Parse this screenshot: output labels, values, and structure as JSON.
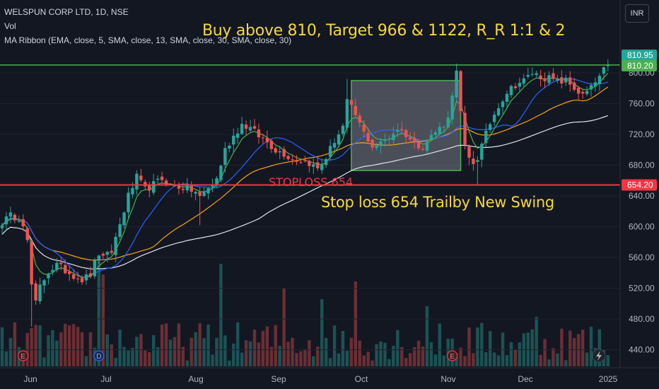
{
  "header": {
    "symbol_line": "WELSPUN CORP LTD, 1D, NSE",
    "volume_label": "Vol",
    "ma_ribbon_label": "MA Ribbon (EMA, close, 5, SMA, close, 13, SMA, close, 30, SMA, close, 30)"
  },
  "currency": "INR",
  "annotations": {
    "headline": "Buy above 810, Target 966 & 1122, R_R 1:1 & 2",
    "stoploss_label": "STOPLOSS 654",
    "stoploss_note": "Stop loss 654 Trailby New Swing"
  },
  "colors": {
    "background": "#131722",
    "up": "#26a69a",
    "down": "#ef5350",
    "buy_line": "#4caf50",
    "stop_line": "#f23645",
    "ema5": "#4caf50",
    "sma13": "#2962ff",
    "sma30": "#f7a21b",
    "sma30b": "#e0e3eb",
    "headline": "#f5d742"
  },
  "chart_data": {
    "type": "candlestick",
    "title": "WELSPUN CORP LTD, 1D, NSE",
    "y_axis": {
      "ticks": [
        440,
        480,
        520,
        560,
        600,
        640,
        680,
        720,
        760,
        800
      ],
      "range": [
        405,
        860
      ]
    },
    "x_axis": {
      "month_labels": [
        "Jun",
        "Jul",
        "Aug",
        "Sep",
        "Oct",
        "Nov",
        "Dec",
        "2025"
      ],
      "total_sessions": 145
    },
    "levels": [
      {
        "name": "buy",
        "value": 810.2,
        "label": "810.20"
      },
      {
        "name": "last",
        "value": 810.95,
        "label": "810.95"
      },
      {
        "name": "stoploss",
        "value": 654.2,
        "label": "654.20"
      }
    ],
    "zone": {
      "from_session": 83,
      "to_session": 109,
      "low": 673,
      "high": 790
    },
    "event_markers": [
      {
        "session": 5,
        "letter": "E"
      },
      {
        "session": 23,
        "letter": "D"
      },
      {
        "session": 107,
        "letter": "E"
      }
    ],
    "close_anchors": [
      [
        0,
        606
      ],
      [
        2,
        614
      ],
      [
        4,
        612
      ],
      [
        5,
        605
      ],
      [
        6,
        580
      ],
      [
        7,
        524
      ],
      [
        8,
        500
      ],
      [
        9,
        522
      ],
      [
        11,
        542
      ],
      [
        13,
        550
      ],
      [
        15,
        543
      ],
      [
        17,
        537
      ],
      [
        19,
        531
      ],
      [
        21,
        538
      ],
      [
        22,
        552
      ],
      [
        23,
        565
      ],
      [
        24,
        558
      ],
      [
        26,
        568
      ],
      [
        28,
        603
      ],
      [
        30,
        640
      ],
      [
        32,
        664
      ],
      [
        34,
        648
      ],
      [
        36,
        655
      ],
      [
        38,
        662
      ],
      [
        40,
        653
      ],
      [
        42,
        652
      ],
      [
        44,
        650
      ],
      [
        46,
        645
      ],
      [
        47,
        638
      ],
      [
        49,
        650
      ],
      [
        51,
        662
      ],
      [
        53,
        700
      ],
      [
        55,
        718
      ],
      [
        57,
        733
      ],
      [
        59,
        728
      ],
      [
        61,
        718
      ],
      [
        63,
        710
      ],
      [
        65,
        700
      ],
      [
        67,
        695
      ],
      [
        69,
        688
      ],
      [
        71,
        686
      ],
      [
        73,
        683
      ],
      [
        75,
        675
      ],
      [
        77,
        690
      ],
      [
        79,
        712
      ],
      [
        81,
        730
      ],
      [
        82,
        762
      ],
      [
        84,
        745
      ],
      [
        86,
        722
      ],
      [
        88,
        705
      ],
      [
        90,
        708
      ],
      [
        92,
        716
      ],
      [
        94,
        728
      ],
      [
        96,
        720
      ],
      [
        98,
        708
      ],
      [
        100,
        705
      ],
      [
        102,
        718
      ],
      [
        104,
        728
      ],
      [
        106,
        740
      ],
      [
        107,
        775
      ],
      [
        108,
        800
      ],
      [
        109,
        748
      ],
      [
        110,
        702
      ],
      [
        111,
        688
      ],
      [
        112,
        683
      ],
      [
        113,
        690
      ],
      [
        114,
        705
      ],
      [
        116,
        735
      ],
      [
        118,
        758
      ],
      [
        120,
        775
      ],
      [
        122,
        785
      ],
      [
        124,
        790
      ],
      [
        126,
        800
      ],
      [
        128,
        795
      ],
      [
        130,
        793
      ],
      [
        132,
        788
      ],
      [
        134,
        790
      ],
      [
        136,
        780
      ],
      [
        138,
        770
      ],
      [
        140,
        780
      ],
      [
        142,
        795
      ],
      [
        144,
        810.95
      ]
    ],
    "volume": {
      "max_bar": "tallest bars near session 23 and session 84"
    }
  }
}
